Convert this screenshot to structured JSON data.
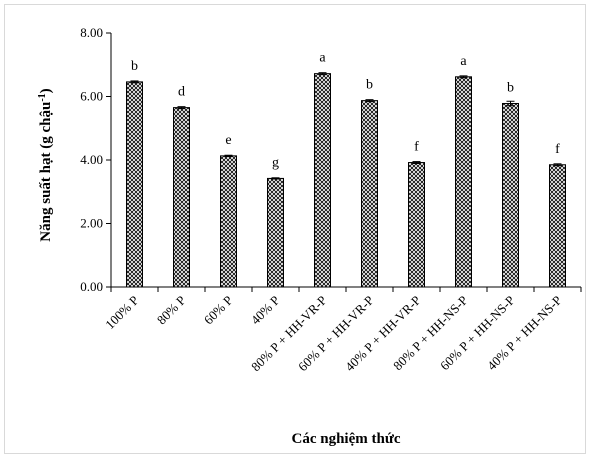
{
  "chart_data": {
    "type": "bar",
    "categories": [
      "100% P",
      "80% P",
      "60% P",
      "40% P",
      "80% P + HH-VR-P",
      "60% P + HH-VR-P",
      "40% P + HH-VR-P",
      "80% P + HH-NS-P",
      "60% P + HH-NS-P",
      "40% P + HH-NS-P"
    ],
    "values": [
      6.46,
      5.65,
      4.13,
      3.42,
      6.72,
      5.87,
      3.92,
      6.62,
      5.78,
      3.85
    ],
    "errors": [
      0.03,
      0.03,
      0.02,
      0.02,
      0.03,
      0.03,
      0.03,
      0.03,
      0.07,
      0.03
    ],
    "significance_letters": [
      "b",
      "d",
      "e",
      "g",
      "a",
      "b",
      "f",
      "a",
      "b",
      "f"
    ],
    "title": "",
    "xlabel": "Các nghiệm thức",
    "ylabel_main": "Năng suất hạt (g chậu",
    "ylabel_sup": "-1",
    "ylabel_end": ")",
    "ylim": [
      0,
      8
    ],
    "yticks": [
      "0.00",
      "2.00",
      "4.00",
      "6.00",
      "8.00"
    ],
    "grid": false,
    "legend": "none",
    "bar_pattern": "cross-hatch",
    "colors": {
      "bar_stroke": "#000000",
      "hatch": "#000000",
      "background": "#ffffff"
    }
  }
}
